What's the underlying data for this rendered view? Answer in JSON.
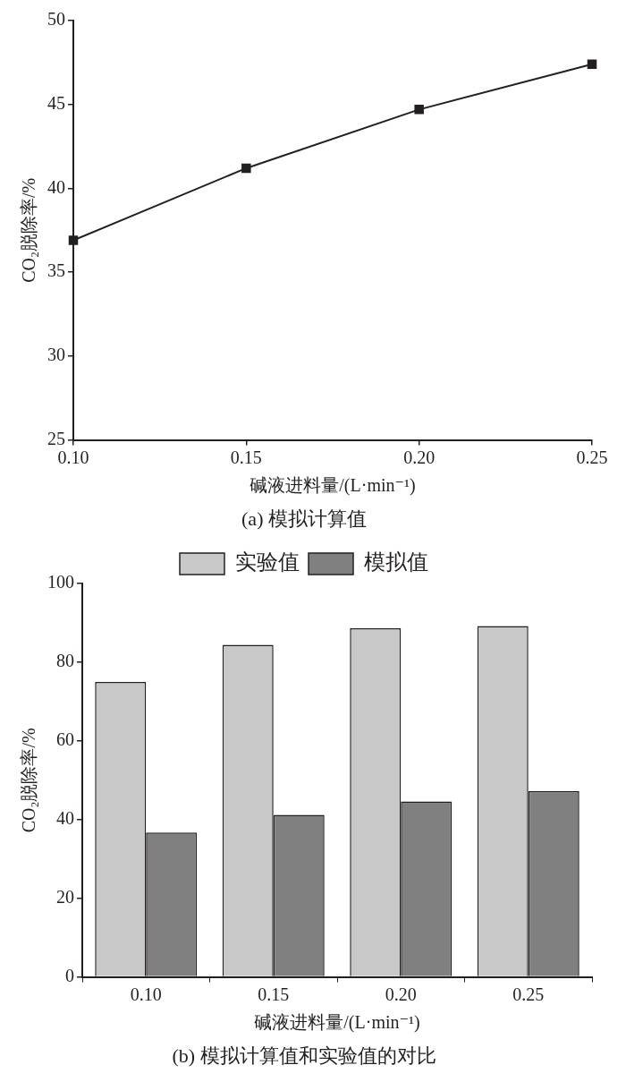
{
  "chart_data": [
    {
      "type": "line",
      "title": "(a) 模拟计算值",
      "xlabel": "碱液进料量/(L·min⁻¹)",
      "ylabel": "CO₂脱除率/%",
      "x": [
        0.1,
        0.15,
        0.2,
        0.25
      ],
      "series": [
        {
          "color": "#231f20",
          "values": [
            36.9,
            41.2,
            44.7,
            47.4
          ]
        }
      ],
      "xlim": [
        0.1,
        0.25
      ],
      "xticks": [
        {
          "value": 0.1,
          "label": "0.10"
        },
        {
          "value": 0.15,
          "label": "0.15"
        },
        {
          "value": 0.2,
          "label": "0.20"
        },
        {
          "value": 0.25,
          "label": "0.25"
        }
      ],
      "ylim": [
        25,
        50
      ],
      "yticks": [
        25,
        30,
        35,
        40,
        45,
        50
      ],
      "marker": "square",
      "grid": false,
      "legend": false
    },
    {
      "type": "bar",
      "title": "(b) 模拟计算值和实验值的对比",
      "xlabel": "碱液进料量/(L·min⁻¹)",
      "ylabel": "CO₂脱除率/%",
      "categories": [
        "0.10",
        "0.15",
        "0.20",
        "0.25"
      ],
      "series": [
        {
          "name": "实验值",
          "color": "#c8c8c8",
          "values": [
            75.0,
            84.4,
            88.6,
            89.2
          ]
        },
        {
          "name": "模拟值",
          "color": "#808080",
          "values": [
            36.7,
            41.2,
            44.6,
            47.2
          ]
        }
      ],
      "ylim": [
        0,
        100
      ],
      "yticks": [
        0,
        20,
        40,
        60,
        80,
        100
      ],
      "grid": false,
      "legend": "top"
    }
  ]
}
